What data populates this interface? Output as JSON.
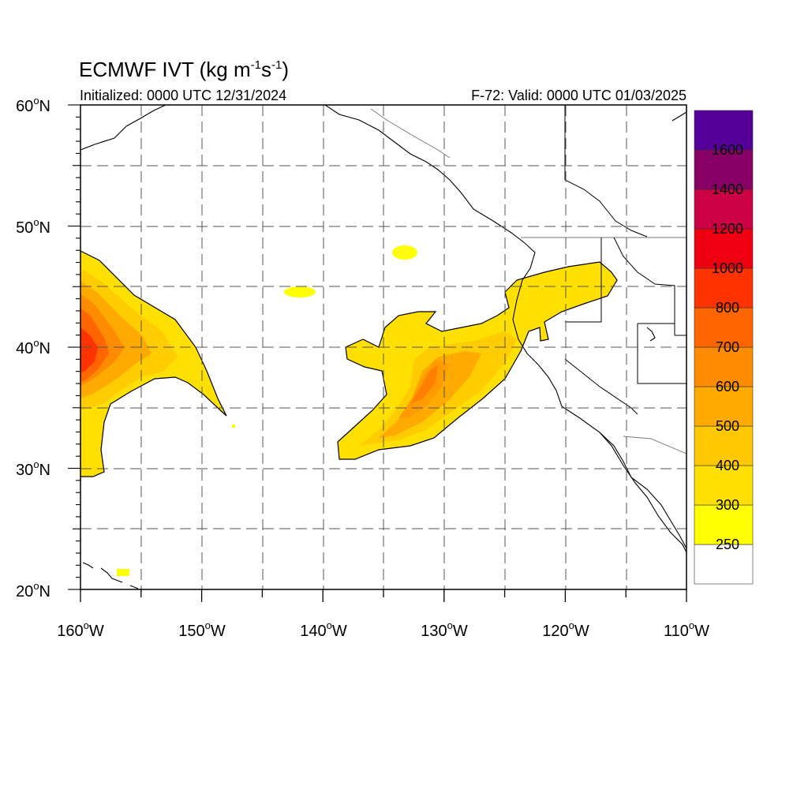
{
  "title": {
    "main": "ECMWF IVT (kg m",
    "exp1": "-1",
    "mid": "s",
    "exp2": "-1",
    "close": ")"
  },
  "initialized": "Initialized: 0000 UTC 12/31/2024",
  "valid": "F-72: Valid: 0000 UTC 01/03/2025",
  "degree_symbol": "o",
  "lat_ticks": [
    {
      "num": "20",
      "hemi": "N"
    },
    {
      "num": "30",
      "hemi": "N"
    },
    {
      "num": "40",
      "hemi": "N"
    },
    {
      "num": "50",
      "hemi": "N"
    },
    {
      "num": "60",
      "hemi": "N"
    }
  ],
  "lon_ticks": [
    {
      "num": "160",
      "hemi": "W"
    },
    {
      "num": "150",
      "hemi": "W"
    },
    {
      "num": "140",
      "hemi": "W"
    },
    {
      "num": "130",
      "hemi": "W"
    },
    {
      "num": "120",
      "hemi": "W"
    },
    {
      "num": "110",
      "hemi": "W"
    }
  ],
  "extent": {
    "lon_min": -160,
    "lon_max": -110,
    "lat_min": 20,
    "lat_max": 60
  },
  "colorbar": {
    "levels": [
      "250",
      "300",
      "400",
      "500",
      "600",
      "700",
      "800",
      "1000",
      "1200",
      "1400",
      "1600"
    ],
    "colors": [
      "#ffffff",
      "#ffff00",
      "#ffe000",
      "#ffc800",
      "#ffaa00",
      "#ff8c00",
      "#ff6600",
      "#ff3300",
      "#ee0011",
      "#cc0044",
      "#880066",
      "#550099"
    ]
  },
  "colors": {
    "gridline": "#555555",
    "coastline": "#000000"
  }
}
